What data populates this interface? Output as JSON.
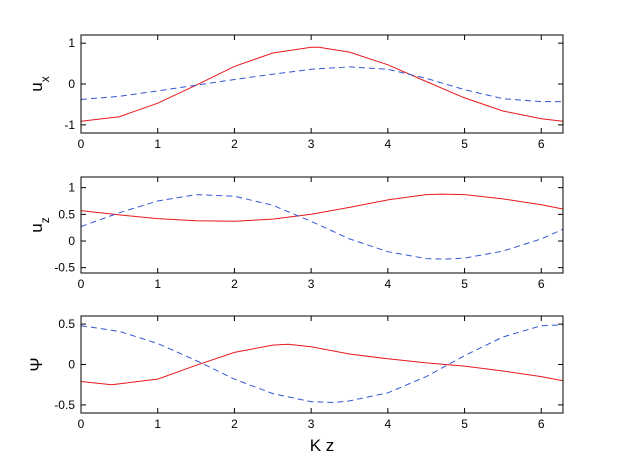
{
  "chart_data": [
    {
      "type": "line",
      "ylabel": "u",
      "ylabel_sub": "x",
      "xlim": [
        0,
        6.2832
      ],
      "ylim": [
        -1.2,
        1.2
      ],
      "xticks": [
        "0",
        "1",
        "2",
        "3",
        "4",
        "5",
        "6"
      ],
      "yticks": [
        "-1",
        "0",
        "1"
      ],
      "ytick_values": [
        -1,
        0,
        1
      ],
      "grid": false,
      "series": [
        {
          "style": "solid",
          "color": "#e8191c",
          "x": [
            0,
            0.5,
            1.0,
            1.5,
            2.0,
            2.5,
            3.0,
            3.1,
            3.5,
            4.0,
            4.5,
            5.0,
            5.5,
            6.0,
            6.28
          ],
          "y": [
            -0.91,
            -0.8,
            -0.47,
            -0.03,
            0.43,
            0.76,
            0.9,
            0.9,
            0.78,
            0.47,
            0.06,
            -0.34,
            -0.66,
            -0.85,
            -0.91
          ]
        },
        {
          "style": "dashed",
          "color": "#3557d6",
          "x": [
            0,
            0.5,
            1.0,
            1.5,
            2.0,
            2.5,
            3.0,
            3.5,
            4.0,
            4.5,
            5.0,
            5.5,
            6.0,
            6.28
          ],
          "y": [
            -0.38,
            -0.3,
            -0.17,
            -0.03,
            0.11,
            0.24,
            0.36,
            0.42,
            0.36,
            0.14,
            -0.14,
            -0.36,
            -0.43,
            -0.43
          ]
        }
      ]
    },
    {
      "type": "line",
      "ylabel": "u",
      "ylabel_sub": "z",
      "xlim": [
        0,
        6.2832
      ],
      "ylim": [
        -0.6,
        1.2
      ],
      "xticks": [
        "0",
        "1",
        "2",
        "3",
        "4",
        "5",
        "6"
      ],
      "yticks": [
        "-0.5",
        "0",
        "0.5",
        "1"
      ],
      "ytick_values": [
        -0.5,
        0,
        0.5,
        1
      ],
      "grid": false,
      "series": [
        {
          "style": "solid",
          "color": "#e8191c",
          "x": [
            0,
            0.5,
            1.0,
            1.5,
            2.0,
            2.5,
            3.0,
            3.5,
            4.0,
            4.5,
            4.7,
            5.0,
            5.5,
            6.0,
            6.28
          ],
          "y": [
            0.57,
            0.49,
            0.42,
            0.38,
            0.37,
            0.41,
            0.5,
            0.63,
            0.77,
            0.87,
            0.88,
            0.87,
            0.79,
            0.68,
            0.6
          ]
        },
        {
          "style": "dashed",
          "color": "#3557d6",
          "x": [
            0,
            0.5,
            1.0,
            1.5,
            2.0,
            2.5,
            3.0,
            3.5,
            4.0,
            4.5,
            4.75,
            5.0,
            5.5,
            6.0,
            6.28
          ],
          "y": [
            0.27,
            0.53,
            0.75,
            0.87,
            0.84,
            0.67,
            0.37,
            0.04,
            -0.2,
            -0.33,
            -0.34,
            -0.32,
            -0.19,
            0.04,
            0.22
          ]
        }
      ]
    },
    {
      "type": "line",
      "ylabel": "Ψ",
      "xlabel": "K z",
      "xlim": [
        0,
        6.2832
      ],
      "ylim": [
        -0.6,
        0.6
      ],
      "xticks": [
        "0",
        "1",
        "2",
        "3",
        "4",
        "5",
        "6"
      ],
      "yticks": [
        "-0.5",
        "0",
        "0.5"
      ],
      "ytick_values": [
        -0.5,
        0,
        0.5
      ],
      "grid": false,
      "series": [
        {
          "style": "solid",
          "color": "#e8191c",
          "x": [
            0,
            0.4,
            1.0,
            1.5,
            2.0,
            2.5,
            2.7,
            3.0,
            3.5,
            4.0,
            4.5,
            5.0,
            5.5,
            6.0,
            6.28
          ],
          "y": [
            -0.21,
            -0.25,
            -0.18,
            -0.01,
            0.15,
            0.24,
            0.25,
            0.22,
            0.13,
            0.07,
            0.02,
            -0.02,
            -0.08,
            -0.15,
            -0.2
          ]
        },
        {
          "style": "dashed",
          "color": "#3557d6",
          "x": [
            0,
            0.5,
            1.0,
            1.5,
            2.0,
            2.5,
            3.0,
            3.3,
            3.5,
            4.0,
            4.5,
            5.0,
            5.5,
            6.0,
            6.28
          ],
          "y": [
            0.48,
            0.41,
            0.26,
            0.05,
            -0.18,
            -0.36,
            -0.46,
            -0.47,
            -0.45,
            -0.35,
            -0.15,
            0.11,
            0.34,
            0.48,
            0.49
          ]
        }
      ]
    }
  ]
}
